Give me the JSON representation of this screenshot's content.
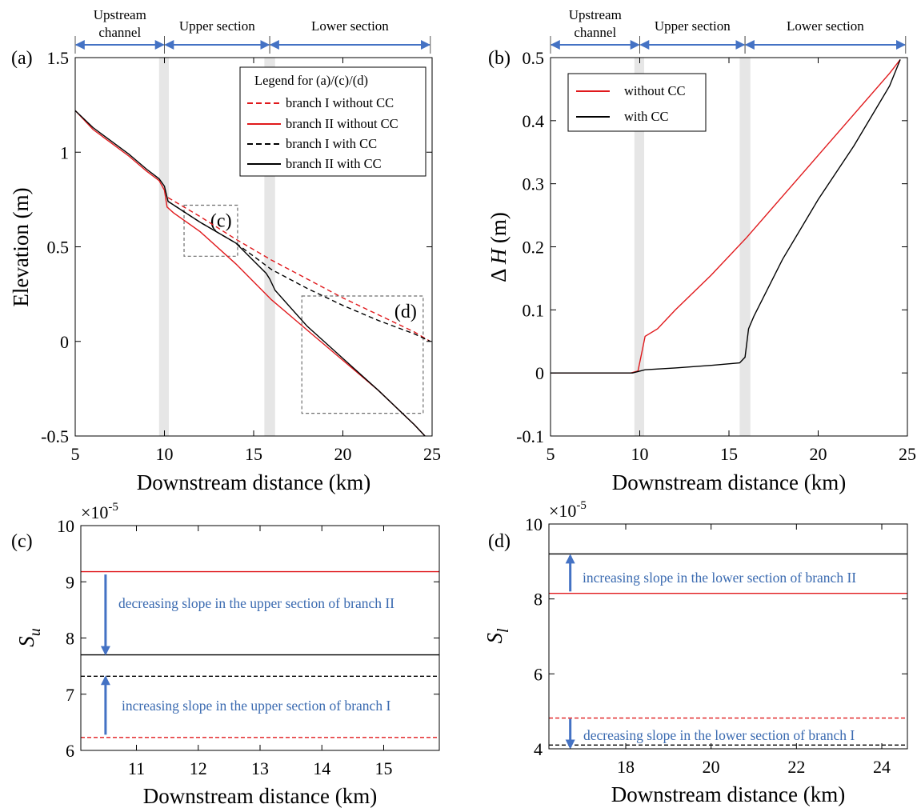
{
  "chart_data": [
    {
      "panel": "(a)",
      "type": "line",
      "xlabel": "Downstream distance (km)",
      "ylabel": "Elevation (m)",
      "xlim": [
        5,
        25
      ],
      "ylim": [
        -0.5,
        1.5
      ],
      "xticks": [
        "5",
        "10",
        "15",
        "20",
        "25"
      ],
      "yticks": [
        "-0.5",
        "0",
        "0.5",
        "1",
        "1.5"
      ],
      "grid": false,
      "legend_position": "top-right",
      "legend": {
        "title": "Legend for (a)/(c)/(d)",
        "entries": [
          "branch I without CC",
          "branch II without CC",
          "branch I with CC",
          "branch II with CC"
        ]
      },
      "sections": [
        {
          "label": "Upstream channel",
          "label_lines": [
            "Upstream",
            "channel"
          ],
          "x_range": [
            5,
            10
          ]
        },
        {
          "label": "Upper section",
          "label_lines": [
            "Upper section"
          ],
          "x_range": [
            10,
            15.9
          ]
        },
        {
          "label": "Lower section",
          "label_lines": [
            "Lower section"
          ],
          "x_range": [
            15.9,
            24.9
          ]
        }
      ],
      "shaded_bands": [
        [
          9.7,
          10.25
        ],
        [
          15.6,
          16.2
        ]
      ],
      "zoom_boxes": [
        {
          "label": "(c)",
          "x": [
            11.1,
            14.1
          ],
          "y": [
            0.45,
            0.72
          ]
        },
        {
          "label": "(d)",
          "x": [
            17.7,
            24.5
          ],
          "y": [
            -0.38,
            0.24
          ]
        }
      ],
      "series": [
        {
          "name": "branch I without CC",
          "color": "#e0191c",
          "dash": "dashed",
          "points": [
            [
              10.2,
              0.76
            ],
            [
              12,
              0.66
            ],
            [
              14,
              0.54
            ],
            [
              16,
              0.43
            ],
            [
              18,
              0.33
            ],
            [
              20,
              0.23
            ],
            [
              22,
              0.14
            ],
            [
              24,
              0.05
            ],
            [
              24.9,
              0.0
            ]
          ]
        },
        {
          "name": "branch II without CC",
          "color": "#e0191c",
          "dash": "solid",
          "points": [
            [
              5,
              1.22
            ],
            [
              6,
              1.12
            ],
            [
              7,
              1.05
            ],
            [
              8,
              0.98
            ],
            [
              9,
              0.9
            ],
            [
              9.7,
              0.85
            ],
            [
              10.0,
              0.8
            ],
            [
              10.15,
              0.71
            ],
            [
              10.5,
              0.68
            ],
            [
              12,
              0.58
            ],
            [
              14,
              0.41
            ],
            [
              16,
              0.22
            ],
            [
              18,
              0.06
            ],
            [
              20,
              -0.1
            ],
            [
              22,
              -0.26
            ],
            [
              24,
              -0.44
            ],
            [
              24.6,
              -0.5
            ]
          ]
        },
        {
          "name": "branch I with CC",
          "color": "#000000",
          "dash": "dashed",
          "points": [
            [
              10.2,
              0.74
            ],
            [
              12,
              0.63
            ],
            [
              14,
              0.52
            ],
            [
              16,
              0.38
            ],
            [
              18,
              0.28
            ],
            [
              20,
              0.19
            ],
            [
              22,
              0.11
            ],
            [
              24,
              0.04
            ],
            [
              24.9,
              0.0
            ]
          ]
        },
        {
          "name": "branch II with CC",
          "color": "#000000",
          "dash": "solid",
          "points": [
            [
              5,
              1.22
            ],
            [
              6,
              1.13
            ],
            [
              7,
              1.06
            ],
            [
              8,
              0.99
            ],
            [
              9,
              0.91
            ],
            [
              9.7,
              0.86
            ],
            [
              10.0,
              0.82
            ],
            [
              10.2,
              0.74
            ],
            [
              12,
              0.63
            ],
            [
              14,
              0.52
            ],
            [
              15.7,
              0.36
            ],
            [
              15.9,
              0.33
            ],
            [
              16.2,
              0.27
            ],
            [
              18,
              0.08
            ],
            [
              20,
              -0.09
            ],
            [
              22,
              -0.26
            ],
            [
              24,
              -0.44
            ],
            [
              24.6,
              -0.5
            ]
          ]
        }
      ]
    },
    {
      "panel": "(b)",
      "type": "line",
      "xlabel": "Downstream distance (km)",
      "ylabel": "Δ H (m)",
      "ylabel_symbol": "Δ",
      "ylabel_var": "H",
      "ylabel_unit": "(m)",
      "xlim": [
        5,
        25
      ],
      "ylim": [
        -0.1,
        0.5
      ],
      "xticks": [
        "5",
        "10",
        "15",
        "20",
        "25"
      ],
      "yticks": [
        "-0.1",
        "0",
        "0.1",
        "0.2",
        "0.3",
        "0.4",
        "0.5"
      ],
      "grid": false,
      "legend_position": "top-left",
      "sections": [
        {
          "label": "Upstream channel",
          "label_lines": [
            "Upstream",
            "channel"
          ],
          "x_range": [
            5,
            10
          ]
        },
        {
          "label": "Upper section",
          "label_lines": [
            "Upper section"
          ],
          "x_range": [
            10,
            15.9
          ]
        },
        {
          "label": "Lower section",
          "label_lines": [
            "Lower section"
          ],
          "x_range": [
            15.9,
            24.9
          ]
        }
      ],
      "shaded_bands": [
        [
          9.7,
          10.25
        ],
        [
          15.6,
          16.2
        ]
      ],
      "series": [
        {
          "name": "without CC",
          "color": "#e0191c",
          "dash": "solid",
          "points": [
            [
              5,
              0
            ],
            [
              9.5,
              0
            ],
            [
              9.9,
              0.003
            ],
            [
              10.1,
              0.03
            ],
            [
              10.3,
              0.058
            ],
            [
              11,
              0.07
            ],
            [
              12,
              0.1
            ],
            [
              14,
              0.155
            ],
            [
              16,
              0.215
            ],
            [
              18,
              0.28
            ],
            [
              20,
              0.345
            ],
            [
              22,
              0.41
            ],
            [
              24,
              0.475
            ],
            [
              24.6,
              0.497
            ]
          ]
        },
        {
          "name": "with CC",
          "color": "#000000",
          "dash": "solid",
          "points": [
            [
              5,
              0
            ],
            [
              9.6,
              0
            ],
            [
              10.3,
              0.005
            ],
            [
              12,
              0.008
            ],
            [
              14,
              0.012
            ],
            [
              15.6,
              0.016
            ],
            [
              15.9,
              0.025
            ],
            [
              16.1,
              0.07
            ],
            [
              16.4,
              0.09
            ],
            [
              18,
              0.18
            ],
            [
              20,
              0.275
            ],
            [
              22,
              0.36
            ],
            [
              24,
              0.455
            ],
            [
              24.6,
              0.497
            ]
          ]
        }
      ]
    },
    {
      "panel": "(c)",
      "type": "line",
      "xlabel": "Downstream distance (km)",
      "ylabel_var": "S",
      "ylabel_sub": "u",
      "y_scale_factor": "×10",
      "y_scale_exp": "-5",
      "xlim": [
        10.1,
        15.9
      ],
      "ylim": [
        6,
        10
      ],
      "xticks": [
        "11",
        "12",
        "13",
        "14",
        "15"
      ],
      "yticks": [
        "6",
        "7",
        "8",
        "9",
        "10"
      ],
      "series": [
        {
          "name": "branch II without CC",
          "color": "#e0191c",
          "dash": "solid",
          "value": 9.18
        },
        {
          "name": "branch II with CC",
          "color": "#000000",
          "dash": "solid",
          "value": 7.7
        },
        {
          "name": "branch I with CC",
          "color": "#000000",
          "dash": "dashed",
          "value": 7.32
        },
        {
          "name": "branch I without CC",
          "color": "#e0191c",
          "dash": "dashed",
          "value": 6.23
        }
      ],
      "annotations": [
        {
          "text": "decreasing slope in the upper section of branch II",
          "arrow": {
            "x": 10.5,
            "from": 9.13,
            "to": 7.72
          }
        },
        {
          "text": "increasing slope in the upper section of branch I",
          "arrow": {
            "x": 10.5,
            "from": 6.28,
            "to": 7.3
          }
        }
      ]
    },
    {
      "panel": "(d)",
      "type": "line",
      "xlabel": "Downstream distance (km)",
      "ylabel_var": "S",
      "ylabel_sub": "l",
      "y_scale_factor": "×10",
      "y_scale_exp": "-5",
      "xlim": [
        16.2,
        24.6
      ],
      "ylim": [
        4,
        10
      ],
      "xticks": [
        "18",
        "20",
        "22",
        "24"
      ],
      "yticks": [
        "4",
        "6",
        "8",
        "10"
      ],
      "series": [
        {
          "name": "branch II with CC",
          "color": "#000000",
          "dash": "solid",
          "value": 9.2
        },
        {
          "name": "branch II without CC",
          "color": "#e0191c",
          "dash": "solid",
          "value": 8.15
        },
        {
          "name": "branch I without CC",
          "color": "#e0191c",
          "dash": "dashed",
          "value": 4.82
        },
        {
          "name": "branch I with CC",
          "color": "#000000",
          "dash": "dashed",
          "value": 4.1
        }
      ],
      "annotations": [
        {
          "text": "increasing slope in the lower section of branch II",
          "arrow": {
            "x": 16.7,
            "from": 8.2,
            "to": 9.15
          }
        },
        {
          "text": "decreasing slope in the lower section of branch I",
          "arrow": {
            "x": 16.7,
            "from": 4.8,
            "to": 4.04
          }
        }
      ]
    }
  ],
  "colors": {
    "red": "#e0191c",
    "black": "#000000",
    "arrow_blue": "#4472c4",
    "annotation_blue": "#3a6ab0",
    "band_gray": "#e6e6e6",
    "box_gray": "#6e6e6e"
  }
}
